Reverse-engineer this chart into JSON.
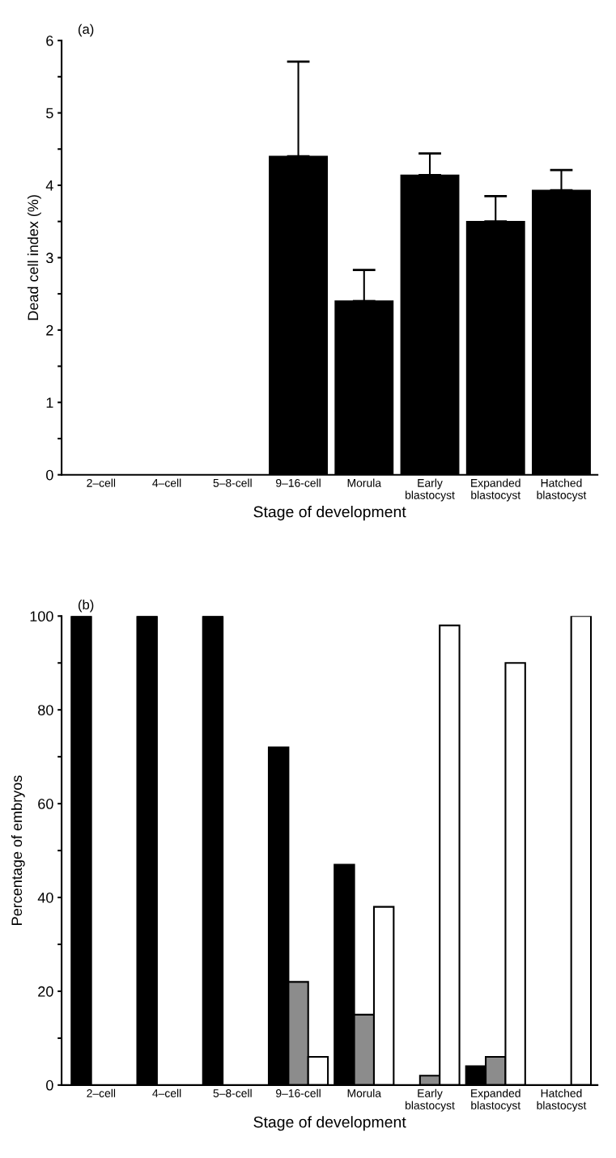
{
  "chart_data": [
    {
      "type": "bar",
      "title": "(a)",
      "xlabel": "Stage of development",
      "ylabel": "Dead cell index (%)",
      "categories": [
        "2–cell",
        "4–cell",
        "5–8-cell",
        "9–16-cell",
        "Morula",
        "Early\nblastocyst",
        "Expanded\nblastocyst",
        "Hatched\nblastocyst"
      ],
      "values": [
        0,
        0,
        0,
        4.4,
        2.4,
        4.14,
        3.5,
        3.93
      ],
      "errors": [
        null,
        null,
        null,
        1.31,
        0.43,
        0.3,
        0.35,
        0.28
      ],
      "color": "#000000",
      "ylim": [
        0,
        6
      ],
      "yticks": [
        0,
        {
          "value": 0.5,
          "label": null
        },
        1,
        {
          "value": 1.5,
          "label": null
        },
        2,
        {
          "value": 2.5,
          "label": null
        },
        3,
        {
          "value": 3.5,
          "label": null
        },
        4,
        {
          "value": 4.5,
          "label": null
        },
        5,
        {
          "value": 5.5,
          "label": null
        },
        6
      ],
      "grid": false,
      "legend": false
    },
    {
      "type": "bar",
      "title": "(b)",
      "xlabel": "Stage of development",
      "ylabel": "Percentage of embryos",
      "categories": [
        "2–cell",
        "4–cell",
        "5–8-cell",
        "9–16-cell",
        "Morula",
        "Early\nblastocyst",
        "Expanded\nblastocyst",
        "Hatched\nblastocyst"
      ],
      "series": [
        {
          "color": "#000000",
          "values": [
            100,
            100,
            100,
            72,
            47,
            0,
            4,
            0
          ]
        },
        {
          "color": "#8c8c8c",
          "values": [
            0,
            0,
            0,
            22,
            15,
            2,
            6,
            0
          ]
        },
        {
          "color": "#ffffff",
          "values": [
            0,
            0,
            0,
            6,
            38,
            98,
            90,
            100
          ]
        }
      ],
      "ylim": [
        0,
        100
      ],
      "yticks": [
        0,
        {
          "value": 10,
          "label": null
        },
        20,
        {
          "value": 30,
          "label": null
        },
        40,
        {
          "value": 50,
          "label": null
        },
        60,
        {
          "value": 70,
          "label": null
        },
        80,
        {
          "value": 90,
          "label": null
        },
        100
      ],
      "grid": false,
      "legend": false
    }
  ]
}
